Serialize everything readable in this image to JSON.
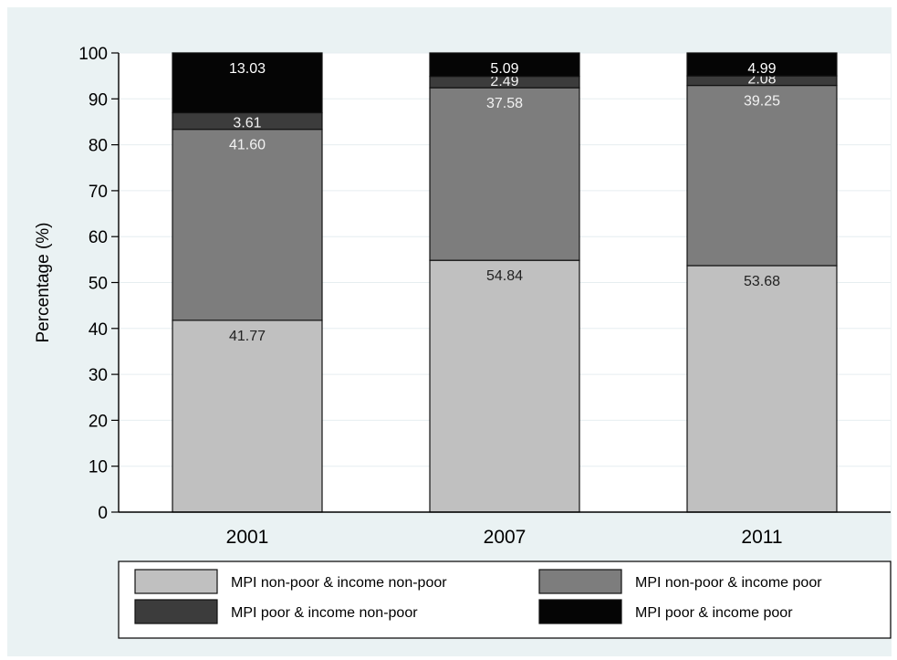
{
  "chart_data": {
    "type": "bar",
    "stacked": true,
    "categories": [
      "2001",
      "2007",
      "2011"
    ],
    "ylabel": "Percentage (%)",
    "ylim": [
      0,
      100
    ],
    "yticks": [
      0,
      10,
      20,
      30,
      40,
      50,
      60,
      70,
      80,
      90,
      100
    ],
    "grid": true,
    "legend_position": "bottom",
    "series": [
      {
        "name": "MPI non-poor & income non-poor",
        "color": "#c0c0c0",
        "label_color": "#222222",
        "values": [
          41.77,
          54.84,
          53.68
        ],
        "labels": [
          "41.77",
          "54.84",
          "53.68"
        ]
      },
      {
        "name": "MPI non-poor & income poor",
        "color": "#7d7d7d",
        "label_color": "#f2f2f2",
        "values": [
          41.6,
          37.58,
          39.25
        ],
        "labels": [
          "41.60",
          "37.58",
          "39.25"
        ]
      },
      {
        "name": "MPI poor & income non-poor",
        "color": "#3c3c3c",
        "label_color": "#f2f2f2",
        "values": [
          3.61,
          2.49,
          2.08
        ],
        "labels": [
          "3.61",
          "2.49",
          "2.08"
        ]
      },
      {
        "name": "MPI poor & income poor",
        "color": "#050505",
        "label_color": "#ffffff",
        "values": [
          13.03,
          5.09,
          4.99
        ],
        "labels": [
          "13.03",
          "5.09",
          "4.99"
        ]
      }
    ]
  }
}
